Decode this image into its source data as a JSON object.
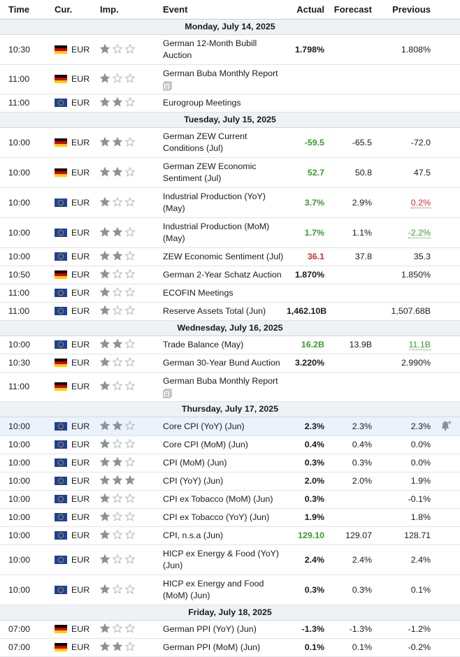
{
  "header": {
    "columns": [
      "Time",
      "Cur.",
      "Imp.",
      "Event",
      "Actual",
      "Forecast",
      "Previous"
    ]
  },
  "days": [
    {
      "date": "Monday, July 14, 2025",
      "events": [
        {
          "time": "10:30",
          "flag": "de",
          "currency": "EUR",
          "importance": 1,
          "event": "German 12-Month Bubill Auction",
          "actual": "1.798%",
          "previous": "1.808%"
        },
        {
          "time": "11:00",
          "flag": "de",
          "currency": "EUR",
          "importance": 1,
          "event": "German Buba Monthly Report",
          "document": true
        },
        {
          "time": "11:00",
          "flag": "eu",
          "currency": "EUR",
          "importance": 2,
          "event": "Eurogroup Meetings"
        }
      ]
    },
    {
      "date": "Tuesday, July 15, 2025",
      "events": [
        {
          "time": "10:00",
          "flag": "de",
          "currency": "EUR",
          "importance": 2,
          "event": "German ZEW Current Conditions (Jul)",
          "actual": "-59.5",
          "actual_color": "#3a9b2f",
          "forecast": "-65.5",
          "previous": "-72.0"
        },
        {
          "time": "10:00",
          "flag": "de",
          "currency": "EUR",
          "importance": 2,
          "event": "German ZEW Economic Sentiment (Jul)",
          "actual": "52.7",
          "actual_color": "#3a9b2f",
          "forecast": "50.8",
          "previous": "47.5"
        },
        {
          "time": "10:00",
          "flag": "eu",
          "currency": "EUR",
          "importance": 1,
          "event": "Industrial Production (YoY) (May)",
          "actual": "3.7%",
          "actual_color": "#3a9b2f",
          "forecast": "2.9%",
          "previous": "0.2%",
          "previous_color": "#d0312d"
        },
        {
          "time": "10:00",
          "flag": "eu",
          "currency": "EUR",
          "importance": 2,
          "event": "Industrial Production (MoM) (May)",
          "actual": "1.7%",
          "actual_color": "#3a9b2f",
          "forecast": "1.1%",
          "previous": "-2.2%",
          "previous_color": "#3a9b2f"
        },
        {
          "time": "10:00",
          "flag": "eu",
          "currency": "EUR",
          "importance": 2,
          "event": "ZEW Economic Sentiment (Jul)",
          "actual": "36.1",
          "actual_color": "#d0312d",
          "forecast": "37.8",
          "previous": "35.3"
        },
        {
          "time": "10:50",
          "flag": "de",
          "currency": "EUR",
          "importance": 1,
          "event": "German 2-Year Schatz Auction",
          "actual": "1.870%",
          "previous": "1.850%"
        },
        {
          "time": "11:00",
          "flag": "eu",
          "currency": "EUR",
          "importance": 1,
          "event": "ECOFIN Meetings"
        },
        {
          "time": "11:00",
          "flag": "eu",
          "currency": "EUR",
          "importance": 1,
          "event": "Reserve Assets Total (Jun)",
          "actual": "1,462.10B",
          "previous": "1,507.68B"
        }
      ]
    },
    {
      "date": "Wednesday, July 16, 2025",
      "events": [
        {
          "time": "10:00",
          "flag": "eu",
          "currency": "EUR",
          "importance": 2,
          "event": "Trade Balance (May)",
          "actual": "16.2B",
          "actual_color": "#3a9b2f",
          "forecast": "13.9B",
          "previous": "11.1B",
          "previous_color": "#3a9b2f"
        },
        {
          "time": "10:30",
          "flag": "de",
          "currency": "EUR",
          "importance": 1,
          "event": "German 30-Year Bund Auction",
          "actual": "3.220%",
          "previous": "2.990%"
        },
        {
          "time": "11:00",
          "flag": "de",
          "currency": "EUR",
          "importance": 1,
          "event": "German Buba Monthly Report",
          "document": true
        }
      ]
    },
    {
      "date": "Thursday, July 17, 2025",
      "events": [
        {
          "time": "10:00",
          "flag": "eu",
          "currency": "EUR",
          "importance": 2,
          "event": "Core CPI (YoY) (Jun)",
          "actual": "2.3%",
          "forecast": "2.3%",
          "previous": "2.3%",
          "highlighted": true
        },
        {
          "time": "10:00",
          "flag": "eu",
          "currency": "EUR",
          "importance": 1,
          "event": "Core CPI (MoM) (Jun)",
          "actual": "0.4%",
          "forecast": "0.4%",
          "previous": "0.0%"
        },
        {
          "time": "10:00",
          "flag": "eu",
          "currency": "EUR",
          "importance": 2,
          "event": "CPI (MoM) (Jun)",
          "actual": "0.3%",
          "forecast": "0.3%",
          "previous": "0.0%"
        },
        {
          "time": "10:00",
          "flag": "eu",
          "currency": "EUR",
          "importance": 3,
          "event": "CPI (YoY) (Jun)",
          "actual": "2.0%",
          "forecast": "2.0%",
          "previous": "1.9%"
        },
        {
          "time": "10:00",
          "flag": "eu",
          "currency": "EUR",
          "importance": 1,
          "event": "CPI ex Tobacco (MoM) (Jun)",
          "actual": "0.3%",
          "previous": "-0.1%"
        },
        {
          "time": "10:00",
          "flag": "eu",
          "currency": "EUR",
          "importance": 1,
          "event": "CPI ex Tobacco (YoY) (Jun)",
          "actual": "1.9%",
          "previous": "1.8%"
        },
        {
          "time": "10:00",
          "flag": "eu",
          "currency": "EUR",
          "importance": 1,
          "event": "CPI, n.s.a (Jun)",
          "actual": "129.10",
          "actual_color": "#3a9b2f",
          "forecast": "129.07",
          "previous": "128.71"
        },
        {
          "time": "10:00",
          "flag": "eu",
          "currency": "EUR",
          "importance": 1,
          "event": "HICP ex Energy & Food (YoY) (Jun)",
          "actual": "2.4%",
          "forecast": "2.4%",
          "previous": "2.4%"
        },
        {
          "time": "10:00",
          "flag": "eu",
          "currency": "EUR",
          "importance": 1,
          "event": "HICP ex Energy and Food (MoM) (Jun)",
          "actual": "0.3%",
          "forecast": "0.3%",
          "previous": "0.1%"
        }
      ]
    },
    {
      "date": "Friday, July 18, 2025",
      "events": [
        {
          "time": "07:00",
          "flag": "de",
          "currency": "EUR",
          "importance": 1,
          "event": "German PPI (YoY) (Jun)",
          "actual": "-1.3%",
          "forecast": "-1.3%",
          "previous": "-1.2%"
        },
        {
          "time": "07:00",
          "flag": "de",
          "currency": "EUR",
          "importance": 2,
          "event": "German PPI (MoM) (Jun)",
          "actual": "0.1%",
          "forecast": "0.1%",
          "previous": "-0.2%"
        }
      ]
    }
  ]
}
